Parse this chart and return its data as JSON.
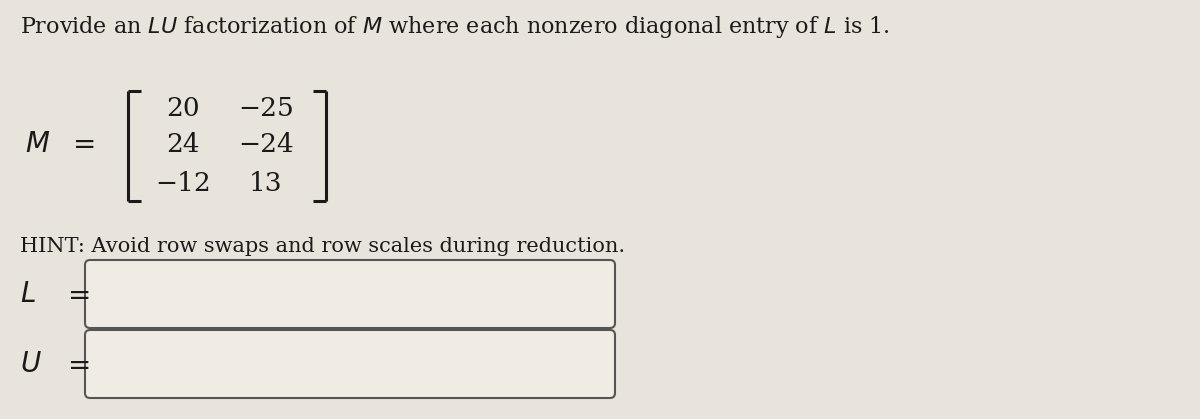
{
  "title_parts": [
    {
      "text": "Provide an ",
      "style": "normal"
    },
    {
      "text": "LU",
      "style": "italic"
    },
    {
      "text": " factorization of ",
      "style": "normal"
    },
    {
      "text": "M",
      "style": "italic"
    },
    {
      "text": " where each nonzero diagonal entry of ",
      "style": "normal"
    },
    {
      "text": "L",
      "style": "italic"
    },
    {
      "text": " is 1.",
      "style": "normal"
    }
  ],
  "matrix_rows": [
    [
      "20",
      "−25"
    ],
    [
      "24",
      "−24"
    ],
    [
      "−12",
      "13"
    ]
  ],
  "hint_text": "HINT: Avoid row swaps and row scales during reduction.",
  "bg_color": "#e8e4dc",
  "box_fill_color": "#f0ece4",
  "box_border_color": "#555555",
  "text_color": "#1a1a1a",
  "title_fontsize": 16,
  "label_fontsize": 20,
  "matrix_fontsize": 19,
  "hint_fontsize": 15
}
